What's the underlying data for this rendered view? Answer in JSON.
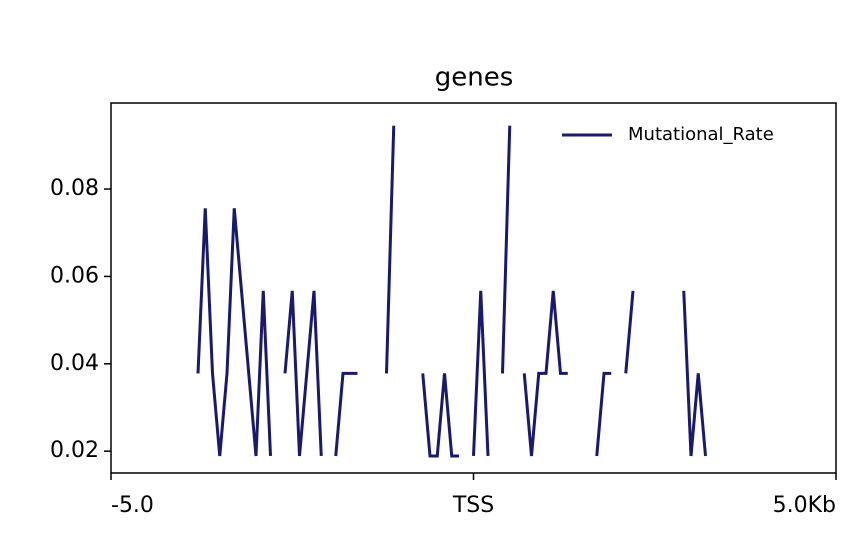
{
  "chart_data": {
    "type": "line",
    "title": "genes",
    "x": [
      -3.8,
      -3.7,
      -3.6,
      -3.5,
      -3.4,
      -3.3,
      -3.2,
      -3.1,
      -3.0,
      -2.9,
      -2.8,
      -2.7,
      -2.6,
      -2.5,
      -2.4,
      -2.3,
      -2.2,
      -2.1,
      -2.0,
      -1.9,
      -1.8,
      -1.7,
      -1.6,
      -1.5,
      -1.4,
      -1.3,
      -1.2,
      -1.1,
      -1.0,
      -0.9,
      -0.8,
      -0.7,
      -0.6,
      -0.5,
      -0.4,
      -0.3,
      -0.2,
      -0.1,
      0.0,
      0.1,
      0.2,
      0.3,
      0.4,
      0.5,
      0.6,
      0.7,
      0.8,
      0.9,
      1.0,
      1.1,
      1.2,
      1.3,
      1.4,
      1.5,
      1.6,
      1.7,
      1.8,
      1.9,
      2.0,
      2.1,
      2.2,
      2.3,
      2.4,
      2.5,
      2.6,
      2.7,
      2.8,
      2.9,
      3.0,
      3.1,
      3.2
    ],
    "series": [
      {
        "name": "Mutational_Rate",
        "color": "#191970",
        "values": [
          0.0378,
          0.0756,
          0.0378,
          0.0189,
          0.0378,
          0.0756,
          0.0567,
          0.0378,
          0.0189,
          0.0567,
          0.0189,
          null,
          0.0378,
          0.0567,
          0.0189,
          0.0378,
          0.0567,
          0.0189,
          null,
          0.0189,
          0.0378,
          0.0378,
          0.0378,
          null,
          null,
          null,
          0.0378,
          0.0945,
          null,
          null,
          null,
          0.0378,
          0.0189,
          0.0189,
          0.0378,
          0.0189,
          0.0189,
          null,
          0.0189,
          0.0567,
          0.0189,
          null,
          0.0378,
          0.0945,
          null,
          0.0378,
          0.0189,
          0.0378,
          0.0378,
          0.0567,
          0.0378,
          0.0378,
          null,
          null,
          null,
          0.0189,
          0.0378,
          0.0378,
          null,
          0.0378,
          0.0567,
          null,
          null,
          null,
          null,
          null,
          null,
          0.0567,
          0.0189,
          0.0378,
          0.0189
        ]
      }
    ],
    "xlim": [
      -5,
      5
    ],
    "xticks": [
      {
        "value": -5,
        "label": "-5.0"
      },
      {
        "value": 0,
        "label": "TSS"
      },
      {
        "value": 5,
        "label": "5.0Kb"
      }
    ],
    "ylim": [
      0.015,
      0.0997
    ],
    "yticks": [
      0.02,
      0.04,
      0.06,
      0.08
    ],
    "grid": false,
    "legend": "upper right"
  }
}
